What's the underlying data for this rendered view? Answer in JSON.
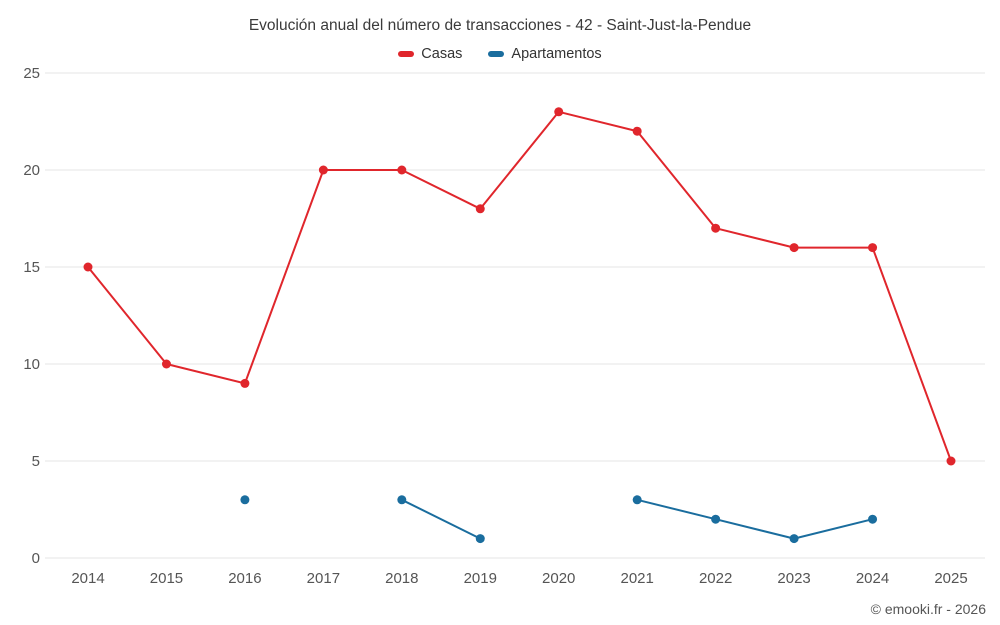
{
  "chart_data": {
    "type": "line",
    "title": "Evolución anual del número de transacciones - 42 - Saint-Just-la-Pendue",
    "categories": [
      "2014",
      "2015",
      "2016",
      "2017",
      "2018",
      "2019",
      "2020",
      "2021",
      "2022",
      "2023",
      "2024",
      "2025"
    ],
    "series": [
      {
        "name": "Casas",
        "color": "#e0262c",
        "values": [
          15,
          10,
          9,
          20,
          20,
          18,
          23,
          22,
          17,
          16,
          16,
          5
        ]
      },
      {
        "name": "Apartamentos",
        "color": "#1a6d9e",
        "values": [
          null,
          null,
          3,
          null,
          3,
          1,
          null,
          3,
          2,
          1,
          2,
          null
        ]
      }
    ],
    "xlabel": "",
    "ylabel": "",
    "ylim": [
      0,
      25
    ],
    "yticks": [
      0,
      5,
      10,
      15,
      20,
      25
    ],
    "grid": "horizontal",
    "legend_position": "top",
    "gridline_color": "#e6e6e6",
    "tick_label_color": "#555555"
  },
  "footer": {
    "copyright": "© emooki.fr - 2026"
  }
}
